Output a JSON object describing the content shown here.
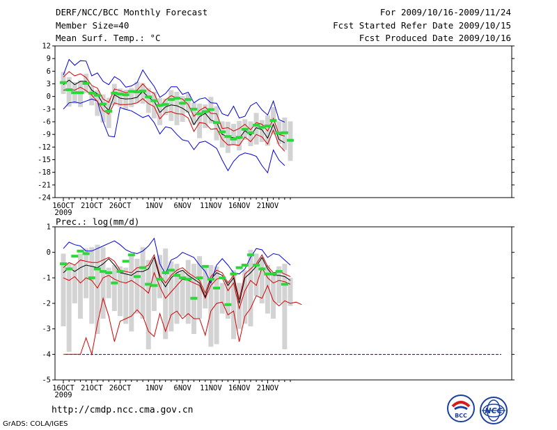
{
  "header": {
    "title": "DERF/NCC/BCC Monthly Forecast",
    "member_size": "Member Size=40",
    "variable": "Mean Surf. Temp.: °C",
    "period": "For 2009/10/16-2009/11/24",
    "fcst_started": "Fcst Started Refer Date 2009/10/15",
    "fcst_produced": "Fcst Produced Date 2009/10/16"
  },
  "footer": {
    "url": "http://cmdp.ncc.cma.gov.cn",
    "grads_credit": "GrADS: COLA/IGES",
    "logo_bcc": "BCC",
    "logo_ncc": "NCC"
  },
  "colors": {
    "box": "#d3d3d3",
    "median": "#2bd83a",
    "mean": "#000000",
    "envelope": "#0000dd",
    "percentile": "#d40000",
    "floor": "#0000dd"
  },
  "chart_data": [
    {
      "type": "box-ensemble",
      "title": "Mean Surf. Temp.: °C",
      "x_labels": [
        {
          "day": 1,
          "label": "16OCT"
        },
        {
          "day": 6,
          "label": "21OCT"
        },
        {
          "day": 11,
          "label": "26OCT"
        },
        {
          "day": 17,
          "label": "1NOV"
        },
        {
          "day": 22,
          "label": "6NOV"
        },
        {
          "day": 27,
          "label": "11NOV"
        },
        {
          "day": 32,
          "label": "16NOV"
        },
        {
          "day": 37,
          "label": "21NOV"
        }
      ],
      "year_label": "2009",
      "ylim": [
        -24,
        12
      ],
      "yticks": [
        -24,
        -21,
        -18,
        -15,
        -12,
        -9,
        -6,
        -3,
        0,
        3,
        6,
        9,
        12
      ],
      "series": [
        {
          "name": "max",
          "values": [
            -3.0,
            -1.5,
            -1.3,
            -1.6,
            -1.1,
            -0.6,
            -1.1,
            -6.0,
            -9.4,
            -9.6,
            -2.6,
            -3.1,
            -3.4,
            -4.2,
            -5.0,
            -4.5,
            -6.2,
            -8.9,
            -7.2,
            -7.5,
            -9.0,
            -10.3,
            -10.6,
            -12.6,
            -10.9,
            -10.6,
            -11.4,
            -12.3,
            -15.1,
            -17.6,
            -15.4,
            -14.0,
            -13.4,
            -13.7,
            -14.2,
            -16.4,
            -18.1,
            -12.7,
            -15.1,
            -16.4
          ]
        },
        {
          "name": "top",
          "values": [
            5.1,
            8.8,
            7.4,
            8.5,
            8.4,
            4.9,
            5.6,
            3.6,
            2.8,
            4.7,
            3.9,
            2.2,
            2.5,
            3.3,
            6.3,
            4.2,
            2.4,
            -0.2,
            0.7,
            2.3,
            2.3,
            0.5,
            1.0,
            -1.5,
            -0.6,
            -0.3,
            -1.5,
            -1.6,
            -4.1,
            -4.6,
            -2.3,
            -5.1,
            -4.7,
            -2.2,
            -1.4,
            -3.2,
            -4.4,
            -1.1,
            -5.5,
            -6.1
          ]
        },
        {
          "name": "mean",
          "values": [
            2.8,
            3.9,
            2.8,
            3.6,
            3.6,
            1.5,
            0.6,
            -1.9,
            -3.3,
            0.4,
            -0.4,
            -0.6,
            -0.5,
            -0.2,
            1.2,
            -0.2,
            -1.1,
            -3.8,
            -2.5,
            -2.0,
            -2.2,
            -2.8,
            -3.7,
            -6.7,
            -4.8,
            -4.0,
            -5.6,
            -6.1,
            -9.0,
            -9.5,
            -9.8,
            -10.0,
            -8.1,
            -9.2,
            -7.4,
            -7.9,
            -9.9,
            -6.6,
            -10.2,
            -11.0
          ]
        },
        {
          "name": "pct_hi",
          "values": [
            4.6,
            5.9,
            4.9,
            5.4,
            4.5,
            2.6,
            2.0,
            -0.6,
            -1.4,
            1.8,
            1.4,
            0.9,
            1.1,
            1.5,
            3.0,
            1.5,
            0.7,
            -2.4,
            -0.8,
            0.2,
            -0.3,
            -0.6,
            -1.9,
            -4.7,
            -3.3,
            -2.5,
            -4.0,
            -4.1,
            -7.6,
            -7.4,
            -8.2,
            -7.6,
            -6.6,
            -7.9,
            -6.2,
            -6.6,
            -8.2,
            -5.2,
            -9.0,
            -9.4
          ]
        },
        {
          "name": "pct_lo",
          "values": [
            1.5,
            1.7,
            1.5,
            2.2,
            1.4,
            0.3,
            -1.2,
            -3.3,
            -4.2,
            -1.5,
            -1.9,
            -1.9,
            -1.8,
            -1.5,
            -0.5,
            -1.7,
            -2.4,
            -5.3,
            -3.8,
            -3.6,
            -4.1,
            -4.2,
            -5.1,
            -8.3,
            -6.2,
            -6.4,
            -7.8,
            -7.6,
            -10.2,
            -11.5,
            -11.4,
            -11.6,
            -9.6,
            -10.7,
            -9.0,
            -9.6,
            -11.3,
            -8.0,
            -11.5,
            -13.0
          ]
        },
        {
          "name": "median",
          "values": [
            3.3,
            1.6,
            0.9,
            0.9,
            3.1,
            0.8,
            0.3,
            -1.8,
            -3.5,
            0.8,
            0.6,
            0.4,
            1.2,
            1.1,
            1.3,
            -0.1,
            -1.0,
            -2.1,
            -1.9,
            -0.7,
            -0.4,
            -1.6,
            -0.7,
            -3.0,
            -4.1,
            -3.6,
            -3.1,
            -6.2,
            -8.4,
            -9.5,
            -10.1,
            -9.7,
            -7.8,
            -8.6,
            -6.8,
            -7.3,
            -7.0,
            -5.7,
            -8.7,
            -8.6,
            -10.4
          ]
        },
        {
          "name": "box_top",
          "values": [
            5.8,
            4.6,
            3.4,
            3.8,
            5.4,
            2.4,
            1.5,
            0.5,
            -0.3,
            3.0,
            1.9,
            1.6,
            2.0,
            3.5,
            3.2,
            2.0,
            1.1,
            -0.4,
            -0.5,
            1.5,
            1.1,
            0.1,
            0.6,
            -1.5,
            -1.7,
            -1.9,
            -0.1,
            -2.3,
            -5.9,
            -6.0,
            -6.5,
            -5.8,
            -5.4,
            -5.9,
            -3.9,
            -5.6,
            -4.5,
            -2.5,
            -5.9,
            -5.0,
            -5.9
          ]
        },
        {
          "name": "box_bot",
          "values": [
            0.6,
            -2.4,
            -1.7,
            -2.5,
            0.8,
            -2.1,
            -4.6,
            -6.2,
            -7.5,
            -2.1,
            -2.4,
            -3.1,
            -2.5,
            -1.6,
            -1.7,
            -3.9,
            -5.2,
            -6.8,
            -4.4,
            -5.8,
            -6.8,
            -6.0,
            -3.9,
            -6.7,
            -9.9,
            -7.5,
            -6.4,
            -10.4,
            -12.1,
            -13.4,
            -11.5,
            -12.8,
            -10.3,
            -11.8,
            -11.4,
            -10.8,
            -11.7,
            -9.0,
            -11.3,
            -12.7,
            -15.3
          ]
        }
      ]
    },
    {
      "type": "box-ensemble",
      "title": "Prec.: log(mm/d)",
      "x_labels": [
        {
          "day": 1,
          "label": "16OCT"
        },
        {
          "day": 6,
          "label": "21OCT"
        },
        {
          "day": 11,
          "label": "26OCT"
        },
        {
          "day": 17,
          "label": "1NOV"
        },
        {
          "day": 22,
          "label": "6NOV"
        },
        {
          "day": 27,
          "label": "11NOV"
        },
        {
          "day": 32,
          "label": "16NOV"
        },
        {
          "day": 37,
          "label": "21NOV"
        }
      ],
      "year_label": "2009",
      "ylim": [
        -5,
        1
      ],
      "yticks": [
        -5,
        -4,
        -3,
        -2,
        -1,
        0,
        1
      ],
      "floor": -4,
      "series": [
        {
          "name": "top",
          "values": [
            0.15,
            0.4,
            0.3,
            0.25,
            0.05,
            0.05,
            0.15,
            0.25,
            0.35,
            0.45,
            0.3,
            0.1,
            0.0,
            -0.05,
            0.05,
            0.25,
            0.55,
            -0.45,
            -0.85,
            -0.3,
            -0.2,
            0.0,
            -0.1,
            -0.2,
            -0.5,
            -0.75,
            -1.2,
            -0.5,
            -0.25,
            -0.5,
            -0.8,
            -0.85,
            -0.65,
            -0.2,
            0.15,
            0.1,
            -0.2,
            -0.05,
            -0.1,
            -0.3,
            -0.5
          ]
        },
        {
          "name": "mean",
          "values": [
            -0.8,
            -0.6,
            -0.75,
            -0.6,
            -0.5,
            -0.55,
            -0.6,
            -0.45,
            -0.25,
            -0.5,
            -0.8,
            -0.85,
            -0.9,
            -0.75,
            -0.75,
            -0.65,
            -0.2,
            -1.0,
            -1.35,
            -1.0,
            -0.8,
            -0.7,
            -0.9,
            -1.05,
            -1.2,
            -1.75,
            -1.05,
            -0.8,
            -0.9,
            -1.3,
            -1.0,
            -2.0,
            -1.0,
            -0.8,
            -0.55,
            -0.2,
            -0.65,
            -0.9,
            -0.9,
            -0.95,
            -1.1
          ]
        },
        {
          "name": "pct_hi",
          "values": [
            -0.6,
            -0.4,
            -0.5,
            -0.3,
            -0.35,
            -0.4,
            -0.4,
            -0.3,
            -0.2,
            -0.35,
            -0.7,
            -0.75,
            -0.8,
            -0.6,
            -0.6,
            -0.5,
            -0.1,
            -0.9,
            -1.2,
            -0.9,
            -0.7,
            -0.6,
            -0.8,
            -0.95,
            -1.1,
            -1.6,
            -0.95,
            -0.7,
            -0.8,
            -1.2,
            -0.9,
            -1.85,
            -0.85,
            -0.65,
            -0.45,
            -0.1,
            -0.55,
            -0.8,
            -0.75,
            -0.85,
            -0.95
          ]
        },
        {
          "name": "pct_lo",
          "values": [
            -1.0,
            -1.1,
            -0.95,
            -1.2,
            -1.0,
            -1.1,
            -1.4,
            -1.0,
            -0.9,
            -1.05,
            -1.15,
            -1.2,
            -1.1,
            -1.25,
            -1.4,
            -1.6,
            -0.8,
            -1.35,
            -1.8,
            -1.55,
            -1.3,
            -1.05,
            -1.1,
            -1.2,
            -1.3,
            -1.8,
            -1.3,
            -1.05,
            -1.0,
            -1.5,
            -1.2,
            -2.2,
            -1.5,
            -1.1,
            -1.3,
            -0.6,
            -1.0,
            -1.2,
            -1.1,
            -1.15,
            -1.25
          ]
        },
        {
          "name": "p10",
          "values": [
            -4.0,
            -4.0,
            -4.0,
            -4.0,
            -3.35,
            -4.0,
            -2.8,
            -1.8,
            -2.5,
            -3.5,
            -2.7,
            -2.6,
            -2.5,
            -2.25,
            -2.5,
            -3.1,
            -3.3,
            -2.4,
            -3.1,
            -2.45,
            -2.3,
            -2.6,
            -2.4,
            -2.6,
            -2.6,
            -3.25,
            -2.3,
            -2.0,
            -1.95,
            -2.45,
            -2.3,
            -3.5,
            -2.5,
            -2.2,
            -1.7,
            -1.8,
            -1.3,
            -1.9,
            -2.1,
            -1.9,
            -2.0,
            -1.95,
            -2.05
          ]
        },
        {
          "name": "median",
          "values": [
            -0.45,
            -0.65,
            -0.15,
            0.05,
            -0.05,
            -1.0,
            -0.65,
            -0.75,
            -0.8,
            -1.2,
            -0.75,
            -0.35,
            -0.1,
            -0.95,
            -0.6,
            -1.25,
            -1.3,
            -1.05,
            -0.8,
            -0.7,
            -0.9,
            -1.0,
            -1.05,
            -1.8,
            -1.0,
            -0.55,
            -1.05,
            -1.4,
            -1.0,
            -2.05,
            -0.85,
            -0.6,
            -0.5,
            -0.1,
            -0.5,
            -0.65,
            -0.85,
            -0.85,
            -0.75,
            -1.25
          ]
        },
        {
          "name": "box_top",
          "values": [
            -0.05,
            -0.4,
            -0.5,
            -0.05,
            0.15,
            0.2,
            0.3,
            0.2,
            -0.6,
            -0.5,
            -0.55,
            -0.6,
            -0.05,
            -0.25,
            0.2,
            -0.3,
            -0.3,
            -0.1,
            0.15,
            -0.35,
            -0.45,
            -0.7,
            -0.3,
            -0.45,
            -0.15,
            -0.5,
            -0.5,
            -0.55,
            -1.2,
            -1.1,
            -0.7,
            -1.2,
            -0.7,
            0.1,
            -0.05,
            -0.2,
            -0.5,
            -0.8,
            -0.55,
            -0.45,
            -1.0
          ]
        },
        {
          "name": "box_bot",
          "values": [
            -2.9,
            -3.9,
            -2.0,
            -2.6,
            -1.8,
            -2.8,
            -3.2,
            -2.6,
            -1.8,
            -2.3,
            -2.5,
            -2.8,
            -3.1,
            -2.4,
            -2.6,
            -3.8,
            -2.3,
            -1.8,
            -3.4,
            -3.1,
            -2.8,
            -2.5,
            -2.8,
            -3.2,
            -2.6,
            -2.2,
            -3.7,
            -3.6,
            -2.4,
            -2.6,
            -3.4,
            -3.0,
            -2.8,
            -2.9,
            -1.7,
            -2.0,
            -2.4,
            -2.6,
            -2.0,
            -3.8,
            -2.1
          ]
        }
      ]
    }
  ]
}
